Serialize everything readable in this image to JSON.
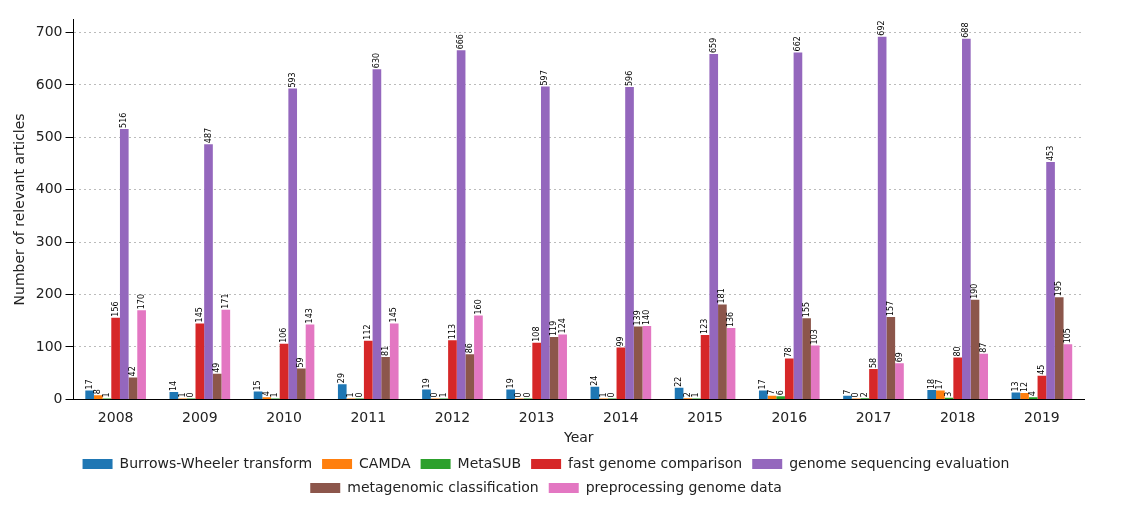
{
  "chart_data": {
    "type": "bar",
    "xlabel": "Year",
    "ylabel": "Number of relevant articles",
    "categories": [
      "2008",
      "2009",
      "2010",
      "2011",
      "2012",
      "2013",
      "2014",
      "2015",
      "2016",
      "2017",
      "2018",
      "2019"
    ],
    "series": [
      {
        "name": "Burrows-Wheeler transform",
        "color": "#1f77b4",
        "values": [
          17,
          14,
          15,
          29,
          19,
          19,
          24,
          22,
          17,
          7,
          18,
          13
        ]
      },
      {
        "name": "CAMDA",
        "color": "#ff7f0e",
        "values": [
          8,
          1,
          4,
          1,
          0,
          0,
          1,
          2,
          7,
          0,
          17,
          12
        ]
      },
      {
        "name": "MetaSUB",
        "color": "#2ca02c",
        "values": [
          1,
          0,
          1,
          0,
          1,
          0,
          0,
          1,
          6,
          2,
          3,
          4
        ]
      },
      {
        "name": "fast genome comparison",
        "color": "#d62728",
        "values": [
          156,
          145,
          106,
          112,
          113,
          108,
          99,
          123,
          78,
          58,
          80,
          45
        ]
      },
      {
        "name": "genome sequencing evaluation",
        "color": "#9467bd",
        "values": [
          516,
          487,
          593,
          630,
          666,
          597,
          596,
          659,
          662,
          692,
          688,
          453
        ]
      },
      {
        "name": "metagenomic classification",
        "color": "#8c564b",
        "values": [
          42,
          49,
          59,
          81,
          86,
          119,
          139,
          181,
          155,
          157,
          190,
          195
        ]
      },
      {
        "name": "preprocessing genome data",
        "color": "#e377c2",
        "values": [
          170,
          171,
          143,
          145,
          160,
          124,
          140,
          136,
          103,
          69,
          87,
          105
        ]
      }
    ],
    "ylim": [
      0,
      725
    ],
    "yticks": [
      0,
      100,
      200,
      300,
      400,
      500,
      600,
      700
    ],
    "grid": "y",
    "legend": "bottom",
    "data_labels": true
  }
}
